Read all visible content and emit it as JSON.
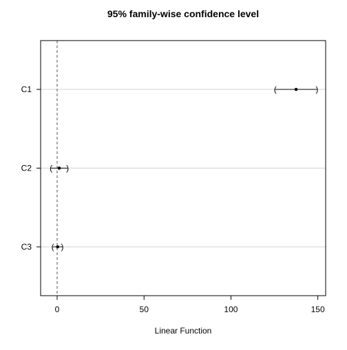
{
  "chart_data": {
    "type": "interval",
    "title": "95% family-wise confidence level",
    "xlabel": "Linear Function",
    "ylabel": "",
    "xlim": [
      -9.5,
      154.5
    ],
    "x_ticks": [
      0,
      50,
      100,
      150
    ],
    "categories": [
      "C1",
      "C2",
      "C3"
    ],
    "estimates": [
      137.5,
      1.2,
      0.3
    ],
    "lower": [
      125.5,
      -3.5,
      -2.5
    ],
    "upper": [
      149.5,
      6.0,
      3.0
    ],
    "reference_line": 0,
    "grid": "horizontal",
    "legend": "none"
  }
}
